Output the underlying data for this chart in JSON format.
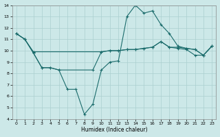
{
  "xlabel": "Humidex (Indice chaleur)",
  "bg_color": "#cce8e8",
  "grid_color": "#aacfcf",
  "line_color": "#1a6b6b",
  "xlim": [
    -0.5,
    23.5
  ],
  "ylim": [
    4,
    14
  ],
  "xticks": [
    0,
    1,
    2,
    3,
    4,
    5,
    6,
    7,
    8,
    9,
    10,
    11,
    12,
    13,
    14,
    15,
    16,
    17,
    18,
    19,
    20,
    21,
    22,
    23
  ],
  "yticks": [
    4,
    5,
    6,
    7,
    8,
    9,
    10,
    11,
    12,
    13,
    14
  ],
  "line1_x": [
    0,
    1,
    2,
    3,
    4,
    5,
    9,
    10,
    11,
    12,
    13,
    14,
    15,
    16,
    17,
    18,
    19,
    20,
    21,
    22,
    23
  ],
  "line1_y": [
    11.5,
    11.0,
    9.8,
    8.5,
    8.5,
    8.3,
    8.3,
    9.9,
    10.0,
    10.0,
    10.1,
    10.1,
    10.2,
    10.3,
    10.8,
    10.3,
    10.2,
    10.1,
    9.6,
    9.6,
    10.4
  ],
  "line2_x": [
    0,
    1,
    2,
    3,
    4,
    5,
    6,
    7,
    8,
    9,
    10,
    11,
    12,
    13,
    14,
    15,
    16,
    17,
    18,
    19,
    20,
    21,
    22,
    23
  ],
  "line2_y": [
    11.5,
    11.0,
    9.8,
    8.5,
    8.5,
    8.3,
    6.6,
    6.6,
    4.4,
    5.3,
    8.3,
    9.0,
    9.1,
    13.0,
    14.0,
    13.3,
    13.5,
    12.3,
    11.5,
    10.4,
    10.2,
    10.1,
    9.6,
    10.4
  ],
  "line3_x": [
    0,
    1,
    2,
    10,
    11,
    12,
    13,
    14,
    15,
    16,
    17,
    18,
    19,
    20,
    21,
    22,
    23
  ],
  "line3_y": [
    11.5,
    11.0,
    9.9,
    9.9,
    10.0,
    10.0,
    10.1,
    10.1,
    10.2,
    10.3,
    10.8,
    10.3,
    10.3,
    10.2,
    10.1,
    9.6,
    10.4
  ]
}
